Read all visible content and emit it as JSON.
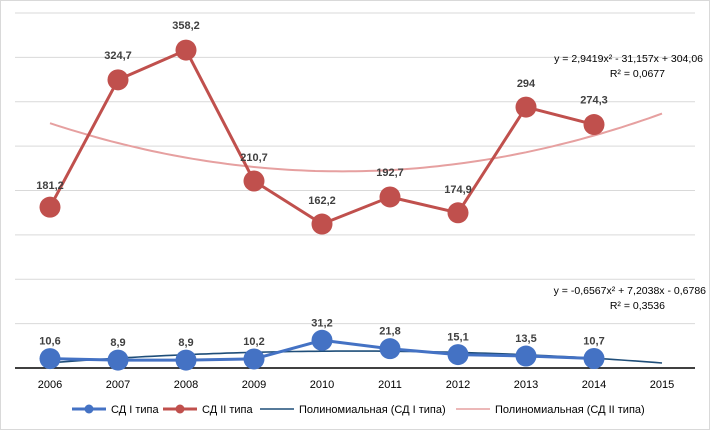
{
  "chart_data": {
    "type": "line",
    "x": [
      "2006",
      "2007",
      "2008",
      "2009",
      "2010",
      "2011",
      "2012",
      "2013",
      "2014",
      "2015"
    ],
    "series": [
      {
        "name": "СД I типа",
        "color": "#4472c4",
        "values": [
          10.6,
          8.9,
          8.9,
          10.2,
          31.2,
          21.8,
          15.1,
          13.5,
          10.7,
          null
        ],
        "labels": [
          "10,6",
          "8,9",
          "8,9",
          "10,2",
          "31,2",
          "21,8",
          "15,1",
          "13,5",
          "10,7",
          ""
        ]
      },
      {
        "name": "СД II типа",
        "color": "#c0504d",
        "values": [
          181.2,
          324.7,
          358.2,
          210.7,
          162.2,
          192.7,
          174.9,
          294,
          274.3,
          null
        ],
        "labels": [
          "181,2",
          "324,7",
          "358,2",
          "210,7",
          "162,2",
          "192,7",
          "174,9",
          "294",
          "274,3",
          ""
        ]
      }
    ],
    "trendlines": [
      {
        "name": "Полиномиальная (СД I типа)",
        "color": "#1f4e79",
        "coeffs": [
          -0.6567,
          7.2038,
          -0.6786
        ],
        "equation": "y = -0,6567x² + 7,2038x - 0,6786",
        "r2": "R² = 0,3536"
      },
      {
        "name": "Полиномиальная (СД II типа)",
        "color": "#e6a0a0",
        "coeffs": [
          2.9419,
          -31.157,
          304.06
        ],
        "equation": "y = 2,9419x² - 31,157x + 304,06",
        "r2": "R² = 0,0677"
      }
    ],
    "ylim": [
      0,
      400
    ],
    "grid": true,
    "legend": "bottom"
  }
}
